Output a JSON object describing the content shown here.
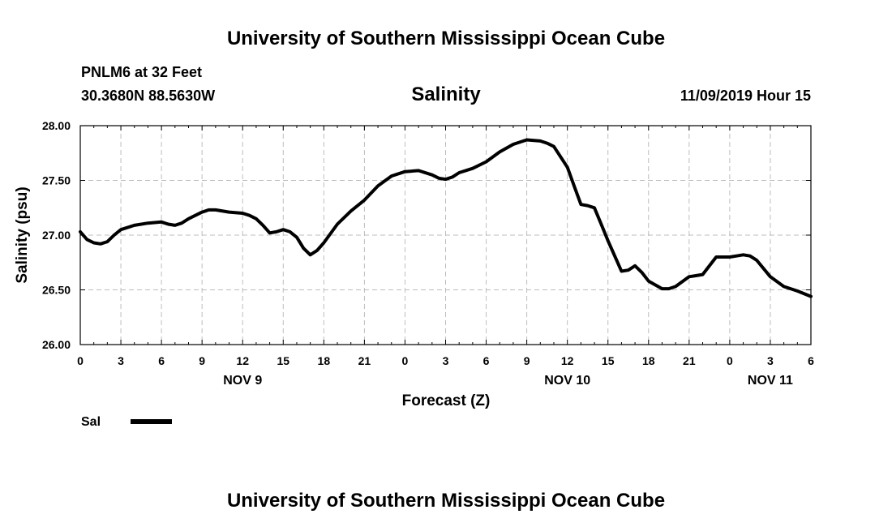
{
  "header": {
    "title": "University of Southern Mississippi Ocean Cube",
    "station": "PNLM6 at 32 Feet",
    "coords": "30.3680N 88.5630W",
    "datetime": "11/09/2019 Hour 15"
  },
  "footer": {
    "title": "University of Southern Mississippi Ocean Cube"
  },
  "chart_data": {
    "type": "line",
    "title": "Salinity",
    "xlabel": "Forecast (Z)",
    "ylabel": "Salinity (psu)",
    "xlim": [
      0,
      54
    ],
    "ylim": [
      26.0,
      28.0
    ],
    "grid": true,
    "y_ticks": [
      "26.00",
      "26.50",
      "27.00",
      "27.50",
      "28.00"
    ],
    "x_tick_labels": [
      "0",
      "3",
      "6",
      "9",
      "12",
      "15",
      "18",
      "21",
      "0",
      "3",
      "6",
      "9",
      "12",
      "15",
      "18",
      "21",
      "0",
      "3",
      "6"
    ],
    "x_day_labels": [
      {
        "hour": 12,
        "label": "NOV 9"
      },
      {
        "hour": 36,
        "label": "NOV 10"
      },
      {
        "hour": 51,
        "label": "NOV 11"
      }
    ],
    "legend": {
      "position": "bottom-left",
      "entries": [
        {
          "name": "Sal"
        }
      ]
    },
    "series": [
      {
        "name": "Sal",
        "color": "#000000",
        "x": [
          0,
          0.5,
          1,
          1.5,
          2,
          2.5,
          3,
          4,
          5,
          6,
          6.5,
          7,
          7.5,
          8,
          9,
          9.5,
          10,
          11,
          12,
          12.5,
          13,
          13.5,
          14,
          14.5,
          15,
          15.5,
          16,
          16.5,
          17,
          17.5,
          18,
          19,
          20,
          21,
          22,
          23,
          24,
          25,
          26,
          26.5,
          27,
          27.5,
          28,
          29,
          30,
          31,
          32,
          33,
          34,
          34.5,
          35,
          36,
          36.5,
          37,
          37.5,
          38,
          38.5,
          39,
          40,
          40.5,
          41,
          41.5,
          42,
          43,
          43.5,
          44,
          45,
          45.5,
          46,
          47,
          48,
          48.5,
          49,
          49.5,
          50,
          51,
          52,
          53,
          54
        ],
        "y": [
          27.03,
          26.96,
          26.93,
          26.92,
          26.94,
          27.0,
          27.05,
          27.09,
          27.11,
          27.12,
          27.1,
          27.09,
          27.11,
          27.15,
          27.21,
          27.23,
          27.23,
          27.21,
          27.2,
          27.18,
          27.15,
          27.09,
          27.02,
          27.03,
          27.05,
          27.03,
          26.98,
          26.88,
          26.82,
          26.86,
          26.93,
          27.1,
          27.22,
          27.32,
          27.45,
          27.54,
          27.58,
          27.59,
          27.55,
          27.52,
          27.51,
          27.53,
          27.57,
          27.61,
          27.67,
          27.76,
          27.83,
          27.87,
          27.86,
          27.84,
          27.81,
          27.62,
          27.45,
          27.28,
          27.27,
          27.25,
          27.1,
          26.95,
          26.67,
          26.68,
          26.72,
          26.66,
          26.58,
          26.51,
          26.51,
          26.53,
          26.62,
          26.63,
          26.64,
          26.8,
          26.8,
          26.81,
          26.82,
          26.81,
          26.77,
          26.62,
          26.53,
          26.49,
          26.44
        ]
      }
    ]
  }
}
